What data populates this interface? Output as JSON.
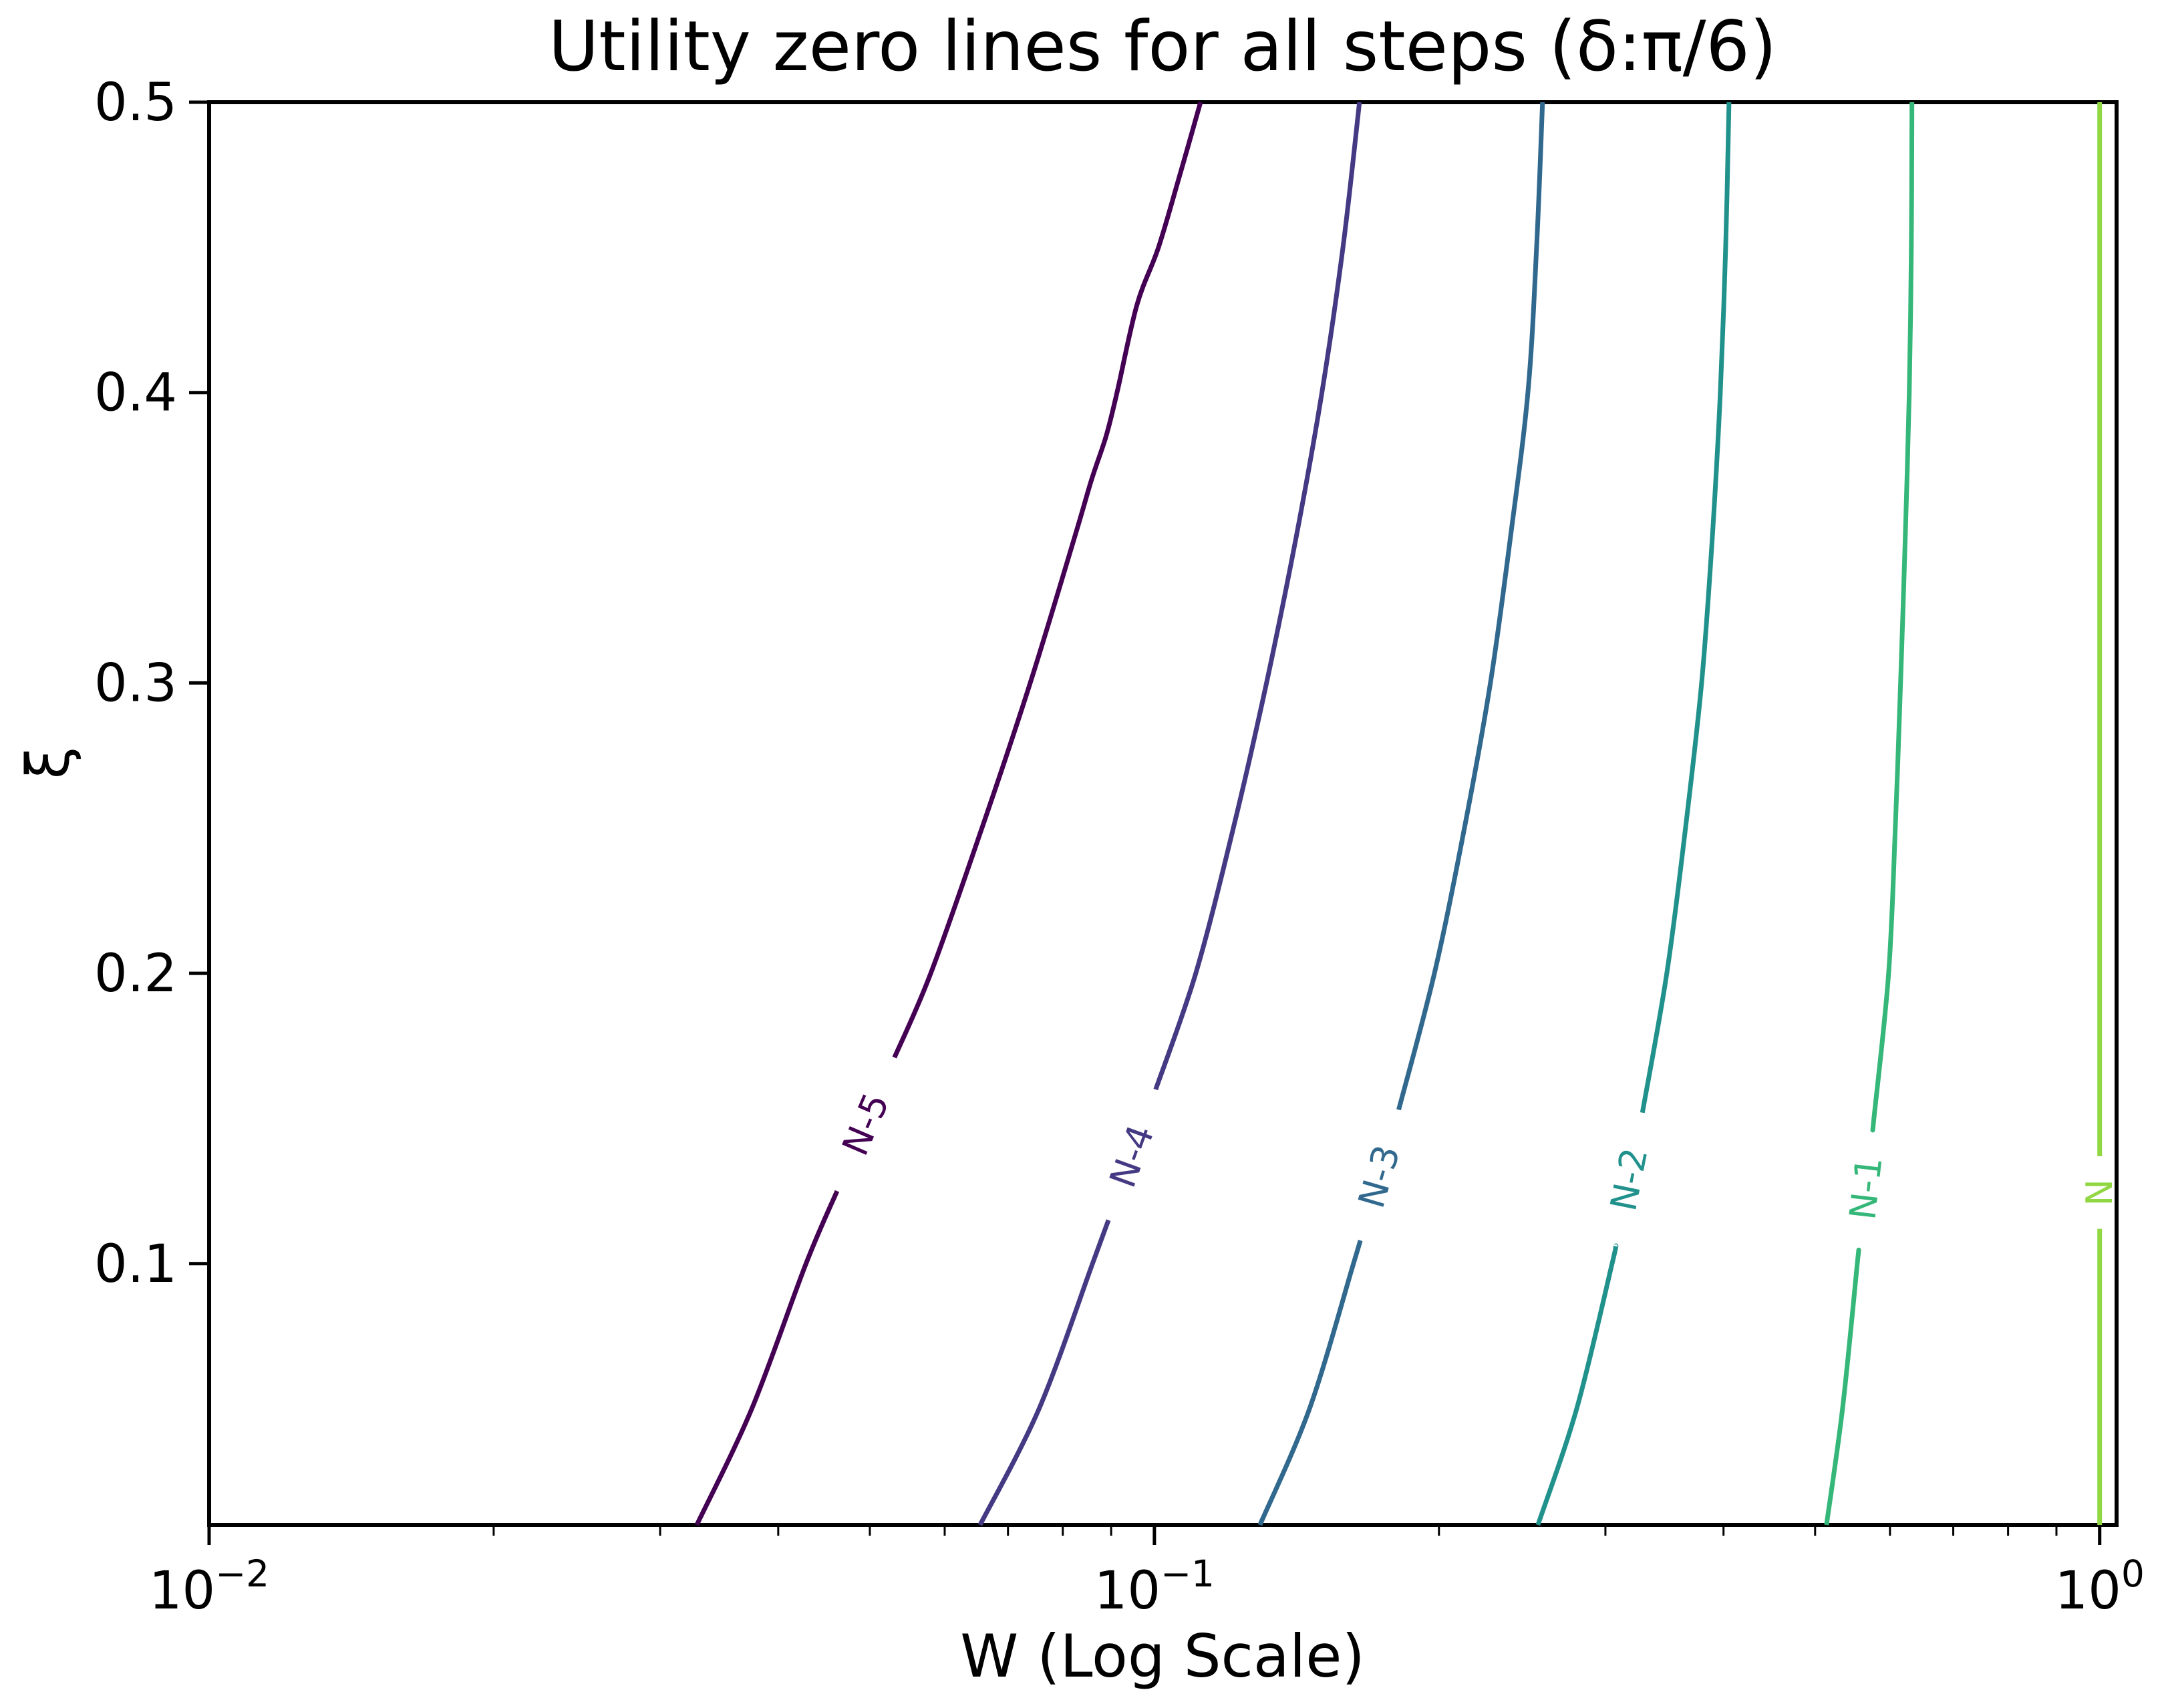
{
  "figure": {
    "title": "Utility zero lines for all steps (δ:π/6)",
    "xlabel": "W (Log Scale)",
    "ylabel": "ξ"
  },
  "chart_data": {
    "type": "line",
    "subtype": "contour-zero-lines",
    "title": "Utility zero lines for all steps (δ:π/6)",
    "xlabel": "W (Log Scale)",
    "ylabel": "ξ",
    "x_scale": "log",
    "y_scale": "linear",
    "xlim": [
      0.01,
      1.042
    ],
    "ylim": [
      0.01,
      0.5
    ],
    "grid": false,
    "legend": false,
    "x_major_ticks": [
      {
        "value": 0.01,
        "base": "10",
        "exp": "−2"
      },
      {
        "value": 0.1,
        "base": "10",
        "exp": "−1"
      },
      {
        "value": 1.0,
        "base": "10",
        "exp": "0"
      }
    ],
    "y_ticks": [
      {
        "value": 0.5,
        "label": "0.5"
      },
      {
        "value": 0.4,
        "label": "0.4"
      },
      {
        "value": 0.3,
        "label": "0.3"
      },
      {
        "value": 0.2,
        "label": "0.2"
      },
      {
        "value": 0.1,
        "label": "0.1"
      }
    ],
    "series": [
      {
        "name": "N-5",
        "color": "#440154",
        "label": {
          "text": "N-5",
          "xi": 0.148,
          "gap": [
            0.125,
            0.171
          ]
        },
        "points_xi": [
          0.01,
          0.05,
          0.1,
          0.15,
          0.2,
          0.25,
          0.3,
          0.35,
          0.37,
          0.385,
          0.4,
          0.43,
          0.45,
          0.475,
          0.5
        ],
        "points_w": [
          0.0328,
          0.0375,
          0.0428,
          0.0498,
          0.058,
          0.0657,
          0.0739,
          0.0823,
          0.0858,
          0.0889,
          0.0913,
          0.0958,
          0.101,
          0.1064,
          0.1119
        ]
      },
      {
        "name": "N-4",
        "color": "#443983",
        "label": {
          "text": "N-4",
          "xi": 0.137,
          "gap": [
            0.115,
            0.16
          ]
        },
        "points_xi": [
          0.01,
          0.05,
          0.1,
          0.15,
          0.2,
          0.25,
          0.3,
          0.35,
          0.4,
          0.45,
          0.5
        ],
        "points_w": [
          0.0654,
          0.0755,
          0.086,
          0.0979,
          0.1106,
          0.1212,
          0.1314,
          0.1412,
          0.1504,
          0.1583,
          0.1648
        ]
      },
      {
        "name": "N-3",
        "color": "#31688e",
        "label": {
          "text": "N-3",
          "xi": 0.13,
          "gap": [
            0.108,
            0.153
          ]
        },
        "points_xi": [
          0.01,
          0.05,
          0.1,
          0.15,
          0.2,
          0.25,
          0.3,
          0.35,
          0.4,
          0.45,
          0.5
        ],
        "points_w": [
          0.1293,
          0.1459,
          0.1624,
          0.1803,
          0.1978,
          0.2128,
          0.2267,
          0.238,
          0.2484,
          0.2537,
          0.2574
        ]
      },
      {
        "name": "N-2",
        "color": "#21918c",
        "label": {
          "text": "N-2",
          "xi": 0.129,
          "gap": [
            0.106,
            0.152
          ]
        },
        "points_xi": [
          0.01,
          0.05,
          0.1,
          0.15,
          0.2,
          0.25,
          0.3,
          0.35,
          0.4,
          0.45,
          0.5
        ],
        "points_w": [
          0.2545,
          0.2797,
          0.3049,
          0.3275,
          0.3484,
          0.3646,
          0.3792,
          0.3892,
          0.3969,
          0.4021,
          0.4054
        ]
      },
      {
        "name": "N-1",
        "color": "#35b779",
        "label": {
          "text": "N-1",
          "xi": 0.126,
          "gap": [
            0.103,
            0.149
          ]
        },
        "points_xi": [
          0.01,
          0.05,
          0.1,
          0.15,
          0.2,
          0.25,
          0.3,
          0.35,
          0.4,
          0.45,
          0.5
        ],
        "points_w": [
          0.514,
          0.5345,
          0.5541,
          0.577,
          0.598,
          0.6078,
          0.6157,
          0.6227,
          0.6289,
          0.632,
          0.633
        ]
      },
      {
        "name": "N",
        "color": "#90d743",
        "label": {
          "text": "N",
          "xi": 0.1245,
          "gap": [
            0.112,
            0.137
          ]
        },
        "points_xi": [
          0.01,
          0.05,
          0.1,
          0.15,
          0.2,
          0.25,
          0.3,
          0.35,
          0.4,
          0.45,
          0.5
        ],
        "points_w": [
          1.0,
          1.0,
          1.0,
          1.0,
          1.0,
          1.0,
          1.0,
          1.0,
          1.0,
          1.0,
          1.0
        ]
      }
    ]
  }
}
